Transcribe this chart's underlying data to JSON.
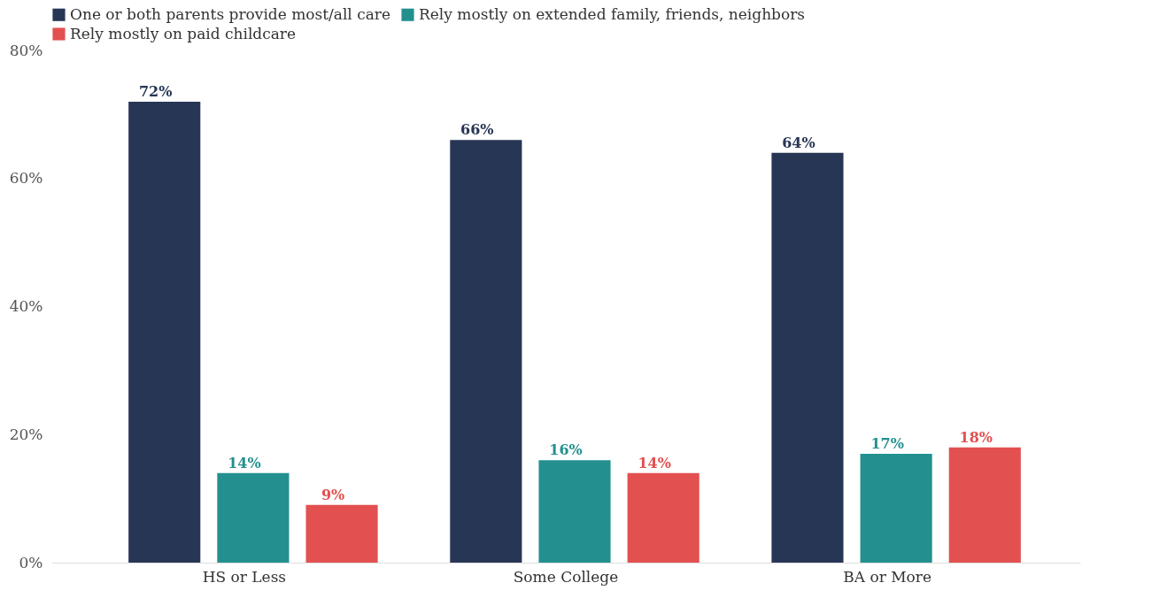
{
  "chart_data": {
    "type": "bar",
    "categories": [
      "HS or Less",
      "Some College",
      "BA or More"
    ],
    "series": [
      {
        "name": "One or both parents provide most/all care",
        "color": "#283655",
        "values": [
          72,
          66,
          64
        ],
        "value_labels": [
          "72%",
          "66%",
          "64%"
        ]
      },
      {
        "name": "Rely mostly on extended family, friends, neighbors",
        "color": "#23908f",
        "values": [
          14,
          16,
          17
        ],
        "value_labels": [
          "14%",
          "16%",
          "17%"
        ]
      },
      {
        "name": "Rely mostly on paid childcare",
        "color": "#e35050",
        "values": [
          9,
          14,
          18
        ],
        "value_labels": [
          "9%",
          "14%",
          "18%"
        ]
      }
    ],
    "ylim": [
      0,
      80
    ],
    "yticks": [
      {
        "value": 0,
        "label": "0%"
      },
      {
        "value": 20,
        "label": "20%"
      },
      {
        "value": 40,
        "label": "40%"
      },
      {
        "value": 60,
        "label": "60%"
      },
      {
        "value": 80,
        "label": "80%"
      }
    ],
    "grid": false,
    "legend": "top left"
  }
}
